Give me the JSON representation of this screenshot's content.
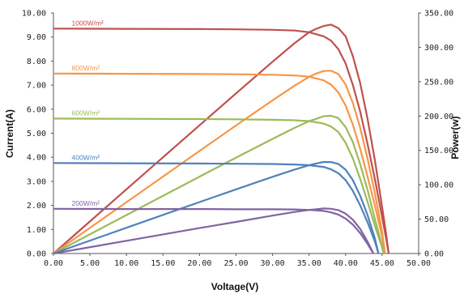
{
  "chart_data": {
    "type": "line",
    "xlabel": "Voltage(V)",
    "ylabel": "Current(A)",
    "y2label": "Power(w)",
    "xlim": [
      0,
      50
    ],
    "ylim": [
      0,
      10
    ],
    "y2lim": [
      0,
      350
    ],
    "xticks": [
      "0.00",
      "5.00",
      "10.00",
      "15.00",
      "20.00",
      "25.00",
      "30.00",
      "35.00",
      "40.00",
      "45.00",
      "50.00"
    ],
    "yticks": [
      "0.00",
      "1.00",
      "2.00",
      "3.00",
      "4.00",
      "5.00",
      "6.00",
      "7.00",
      "8.00",
      "9.00",
      "10.00"
    ],
    "y2ticks": [
      "0.00",
      "50.00",
      "100.00",
      "150.00",
      "200.00",
      "250.00",
      "300.00",
      "350.00"
    ],
    "grid": false,
    "series": [
      {
        "name": "1000W/m²",
        "color": "#c0504d",
        "iv": {
          "x": [
            0,
            10,
            20,
            25,
            30,
            33,
            35,
            37,
            38,
            39,
            40,
            41,
            42,
            43,
            44,
            45,
            45.5,
            45.9
          ],
          "y": [
            9.35,
            9.34,
            9.33,
            9.32,
            9.3,
            9.27,
            9.2,
            9.03,
            8.85,
            8.5,
            7.9,
            7.0,
            5.9,
            4.55,
            3.1,
            1.5,
            0.7,
            0
          ]
        },
        "pv": {
          "x": [
            0,
            10,
            20,
            25,
            30,
            33,
            35,
            36,
            37,
            38,
            39,
            40,
            41,
            42,
            43,
            44,
            45,
            45.5,
            45.9
          ],
          "y": [
            0,
            93.4,
            186.6,
            233,
            279,
            305.9,
            322,
            327,
            331,
            333,
            328,
            316,
            287,
            248,
            196,
            136,
            67.5,
            32,
            0
          ]
        }
      },
      {
        "name": "800W/m²",
        "color": "#f79646",
        "iv": {
          "x": [
            0,
            10,
            20,
            25,
            30,
            33,
            35,
            37,
            38,
            39,
            40,
            41,
            42,
            43,
            44,
            45,
            45.4
          ],
          "y": [
            7.48,
            7.47,
            7.46,
            7.45,
            7.43,
            7.4,
            7.35,
            7.2,
            7.02,
            6.7,
            6.15,
            5.35,
            4.35,
            3.2,
            2.0,
            0.7,
            0
          ]
        },
        "pv": {
          "x": [
            0,
            10,
            20,
            25,
            30,
            33,
            35,
            36,
            37,
            38,
            39,
            40,
            41,
            42,
            43,
            44,
            45,
            45.4
          ],
          "y": [
            0,
            74.7,
            149.2,
            186.3,
            222.9,
            244.2,
            257,
            262,
            265.5,
            266,
            261,
            246,
            219,
            183,
            138,
            88,
            31.5,
            0
          ]
        }
      },
      {
        "name": "600W/m²",
        "color": "#9bbb59",
        "iv": {
          "x": [
            0,
            10,
            20,
            25,
            30,
            33,
            35,
            37,
            38,
            39,
            40,
            41,
            42,
            43,
            44,
            45,
            45.2
          ],
          "y": [
            5.61,
            5.6,
            5.59,
            5.58,
            5.56,
            5.54,
            5.5,
            5.4,
            5.28,
            5.05,
            4.6,
            3.95,
            3.1,
            2.15,
            1.15,
            0.25,
            0
          ]
        },
        "pv": {
          "x": [
            0,
            10,
            20,
            25,
            30,
            33,
            35,
            36,
            37,
            38,
            39,
            40,
            41,
            42,
            43,
            44,
            45,
            45.2
          ],
          "y": [
            0,
            56,
            111.8,
            139.5,
            166.8,
            182.8,
            192.5,
            196,
            199.8,
            200.5,
            197,
            184,
            162,
            130,
            92.5,
            50.6,
            11,
            0
          ]
        }
      },
      {
        "name": "400W/m²",
        "color": "#4f81bd",
        "iv": {
          "x": [
            0,
            10,
            20,
            25,
            30,
            33,
            35,
            37,
            38,
            39,
            40,
            41,
            42,
            43,
            44,
            44.5
          ],
          "y": [
            3.76,
            3.75,
            3.74,
            3.73,
            3.72,
            3.7,
            3.67,
            3.6,
            3.5,
            3.34,
            3.05,
            2.6,
            2.0,
            1.3,
            0.5,
            0
          ]
        },
        "pv": {
          "x": [
            0,
            10,
            20,
            25,
            30,
            33,
            35,
            36,
            37,
            38,
            39,
            40,
            41,
            42,
            43,
            44,
            44.5
          ],
          "y": [
            0,
            37.5,
            74.8,
            93.3,
            111.6,
            122.1,
            128.5,
            131,
            133.2,
            133,
            130.3,
            122,
            106.6,
            84,
            55.9,
            22,
            0
          ]
        }
      },
      {
        "name": "200W/m²",
        "color": "#8064a2",
        "iv": {
          "x": [
            0,
            10,
            20,
            25,
            30,
            33,
            35,
            37,
            38,
            39,
            40,
            41,
            42,
            43,
            43.8
          ],
          "y": [
            1.86,
            1.85,
            1.85,
            1.84,
            1.84,
            1.83,
            1.81,
            1.77,
            1.71,
            1.62,
            1.45,
            1.2,
            0.85,
            0.4,
            0
          ]
        },
        "pv": {
          "x": [
            0,
            10,
            20,
            25,
            30,
            33,
            35,
            36,
            37,
            38,
            39,
            40,
            41,
            42,
            43,
            43.8
          ],
          "y": [
            0,
            18.5,
            37,
            46,
            55.2,
            60.4,
            63.4,
            64.5,
            65.5,
            65,
            63.2,
            58,
            49.2,
            35.7,
            17.2,
            0
          ]
        }
      }
    ]
  }
}
